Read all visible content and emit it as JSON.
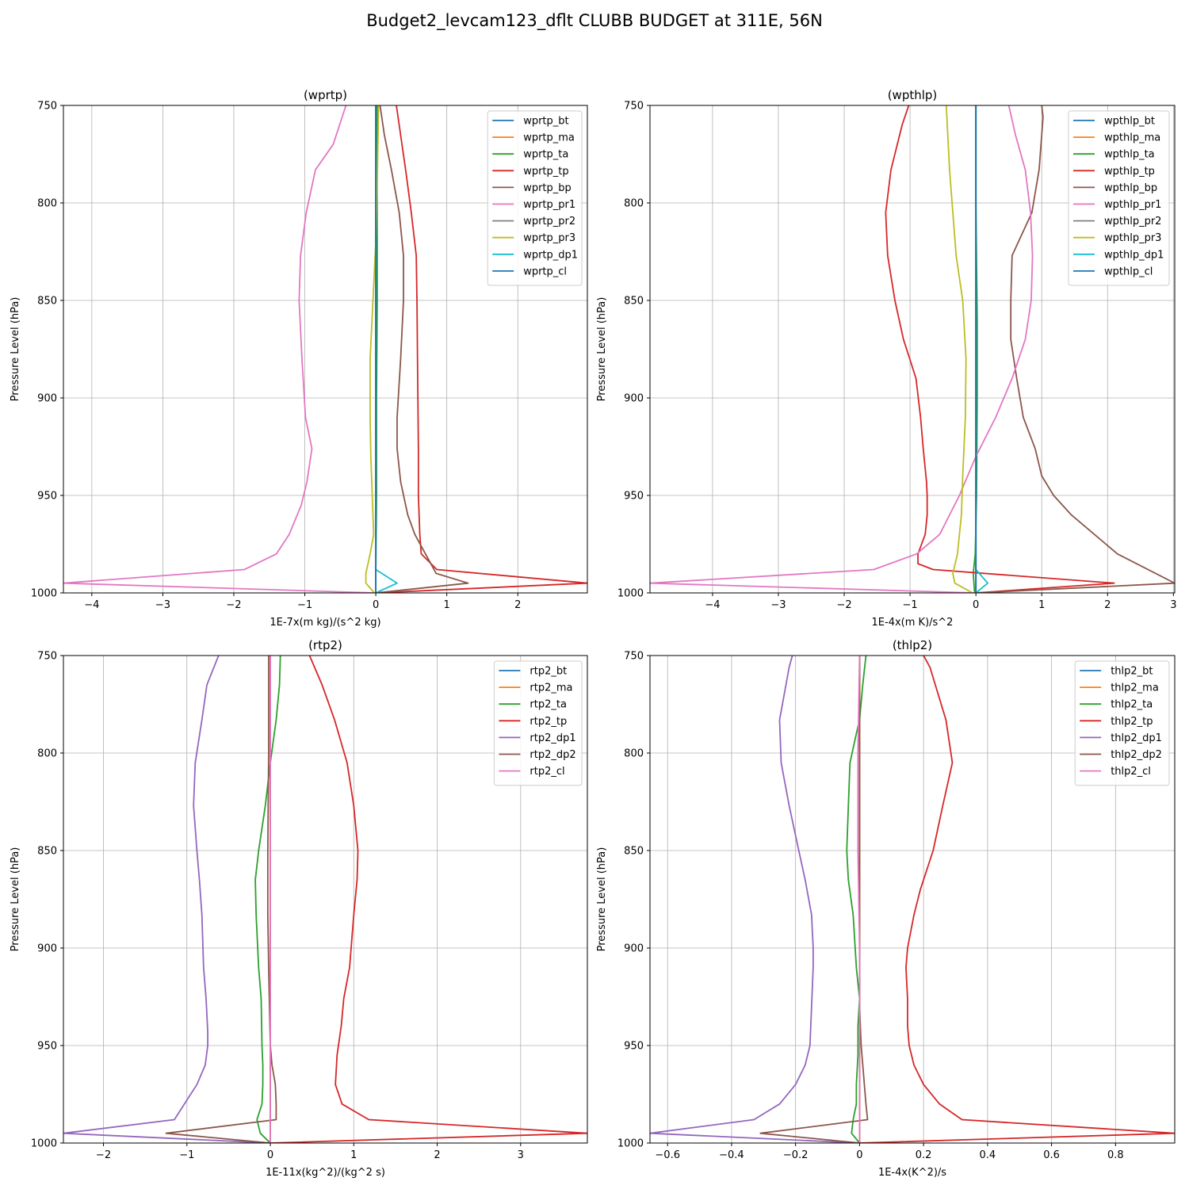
{
  "figure_title": "Budget2_levcam123_dflt CLUBB BUDGET at 311E, 56N",
  "colors": {
    "c0": "#1f77b4",
    "c1": "#ff7f0e",
    "c2": "#2ca02c",
    "c3": "#d62728",
    "c4": "#9467bd",
    "c5": "#8c564b",
    "c6": "#e377c2",
    "c7": "#7f7f7f",
    "c8": "#bcbd22",
    "c9": "#17becf"
  },
  "chart_data": [
    {
      "type": "line",
      "title": "(wprtp)",
      "xlabel": "1E-7x(m kg)/(s^2 kg)",
      "ylabel": "Pressure Level (hPa)",
      "xlim": [
        -4.4,
        2.98
      ],
      "ylim": [
        1000,
        750
      ],
      "xticks": [
        -4,
        -3,
        -2,
        -1,
        0,
        1,
        2
      ],
      "yticks": [
        750,
        800,
        850,
        900,
        950,
        1000
      ],
      "grid": true,
      "legend_position": "top-right",
      "series": [
        {
          "name": "wprtp_bt",
          "color": "c0",
          "x": [
            0,
            0
          ],
          "y": [
            750,
            1000
          ]
        },
        {
          "name": "wprtp_ma",
          "color": "c1",
          "x": [
            0,
            0
          ],
          "y": [
            750,
            1000
          ]
        },
        {
          "name": "wprtp_ta",
          "color": "c2",
          "x": [
            0.02,
            0.02,
            0.02,
            0.01,
            0.01,
            0.0,
            0.0
          ],
          "y": [
            750,
            800,
            850,
            900,
            950,
            990,
            1000
          ]
        },
        {
          "name": "wprtp_tp",
          "color": "c3",
          "x": [
            0.29,
            0.42,
            0.5,
            0.57,
            0.58,
            0.59,
            0.6,
            0.6,
            0.62,
            0.64,
            0.86,
            2.98,
            0.0
          ],
          "y": [
            750,
            783,
            805,
            827,
            850,
            890,
            926,
            950,
            970,
            980,
            988,
            995,
            1000
          ]
        },
        {
          "name": "wprtp_bp",
          "color": "c5",
          "x": [
            0.06,
            0.12,
            0.22,
            0.33,
            0.39,
            0.39,
            0.35,
            0.3,
            0.3,
            0.35,
            0.45,
            0.55,
            0.7,
            0.85,
            1.3,
            0.0
          ],
          "y": [
            750,
            765,
            783,
            805,
            827,
            850,
            880,
            910,
            926,
            943,
            960,
            970,
            980,
            990,
            995,
            1000
          ]
        },
        {
          "name": "wprtp_pr1",
          "color": "c6",
          "x": [
            -0.42,
            -0.6,
            -0.85,
            -0.98,
            -1.06,
            -1.08,
            -1.04,
            -0.99,
            -0.9,
            -0.97,
            -1.05,
            -1.22,
            -1.4,
            -1.85,
            -4.4,
            0.0
          ],
          "y": [
            750,
            770,
            783,
            805,
            827,
            850,
            880,
            910,
            926,
            943,
            955,
            970,
            980,
            988,
            995,
            1000
          ]
        },
        {
          "name": "wprtp_pr2",
          "color": "c7",
          "x": [
            0,
            0
          ],
          "y": [
            750,
            1000
          ]
        },
        {
          "name": "wprtp_pr3",
          "color": "c8",
          "x": [
            0.04,
            0.02,
            0.0,
            -0.04,
            -0.08,
            -0.08,
            -0.07,
            -0.05,
            -0.03,
            -0.08,
            -0.14,
            -0.14,
            -0.02
          ],
          "y": [
            750,
            790,
            820,
            850,
            880,
            910,
            930,
            950,
            970,
            980,
            990,
            995,
            1000
          ]
        },
        {
          "name": "wprtp_dp1",
          "color": "c9",
          "x": [
            0.0,
            0.0,
            0.0,
            0.3,
            0.0
          ],
          "y": [
            750,
            900,
            988,
            995,
            1000
          ]
        },
        {
          "name": "wprtp_cl",
          "color": "c0",
          "x": [
            0,
            0
          ],
          "y": [
            750,
            1000
          ]
        }
      ]
    },
    {
      "type": "line",
      "title": "(wpthlp)",
      "xlabel": "1E-4x(m K)/s^2",
      "ylabel": "Pressure Level (hPa)",
      "xlim": [
        -4.95,
        3.02
      ],
      "ylim": [
        1000,
        750
      ],
      "xticks": [
        -4,
        -3,
        -2,
        -1,
        0,
        1,
        2,
        3
      ],
      "yticks": [
        750,
        800,
        850,
        900,
        950,
        1000
      ],
      "grid": true,
      "legend_position": "top-right",
      "series": [
        {
          "name": "wpthlp_bt",
          "color": "c0",
          "x": [
            0,
            0
          ],
          "y": [
            750,
            1000
          ]
        },
        {
          "name": "wpthlp_ma",
          "color": "c1",
          "x": [
            0,
            0
          ],
          "y": [
            750,
            1000
          ]
        },
        {
          "name": "wpthlp_ta",
          "color": "c2",
          "x": [
            0.0,
            0.0,
            0.02,
            0.02,
            0.01,
            -0.01,
            -0.04,
            -0.02
          ],
          "y": [
            750,
            800,
            860,
            900,
            950,
            980,
            990,
            1000
          ]
        },
        {
          "name": "wpthlp_tp",
          "color": "c3",
          "x": [
            -1.02,
            -1.12,
            -1.29,
            -1.37,
            -1.34,
            -1.23,
            -1.1,
            -0.91,
            -0.84,
            -0.8,
            -0.75,
            -0.74,
            -0.74,
            -0.77,
            -0.88,
            -0.88,
            -0.65,
            2.1,
            0.0
          ],
          "y": [
            750,
            760,
            783,
            805,
            827,
            850,
            870,
            890,
            910,
            926,
            943,
            950,
            960,
            970,
            980,
            985,
            988,
            995,
            1000
          ]
        },
        {
          "name": "wpthlp_bp",
          "color": "c5",
          "x": [
            1.0,
            1.02,
            0.96,
            0.85,
            0.55,
            0.53,
            0.53,
            0.62,
            0.72,
            0.9,
            1.0,
            1.18,
            1.45,
            1.8,
            2.15,
            3.02,
            0.0
          ],
          "y": [
            750,
            756,
            783,
            805,
            827,
            850,
            870,
            890,
            910,
            926,
            940,
            950,
            960,
            970,
            980,
            995,
            1000
          ]
        },
        {
          "name": "wpthlp_pr1",
          "color": "c6",
          "x": [
            0.5,
            0.6,
            0.75,
            0.83,
            0.86,
            0.84,
            0.75,
            0.55,
            0.3,
            0.0,
            -0.25,
            -0.4,
            -0.55,
            -0.9,
            -1.55,
            -4.95,
            0.0
          ],
          "y": [
            750,
            765,
            783,
            805,
            827,
            850,
            870,
            890,
            910,
            930,
            950,
            960,
            970,
            980,
            988,
            995,
            1000
          ]
        },
        {
          "name": "wpthlp_pr2",
          "color": "c7",
          "x": [
            0,
            0
          ],
          "y": [
            750,
            1000
          ]
        },
        {
          "name": "wpthlp_pr3",
          "color": "c8",
          "x": [
            -0.45,
            -0.4,
            -0.3,
            -0.2,
            -0.15,
            -0.16,
            -0.2,
            -0.22,
            -0.28,
            -0.35,
            -0.32,
            -0.05
          ],
          "y": [
            750,
            783,
            827,
            850,
            880,
            910,
            940,
            960,
            980,
            990,
            995,
            1000
          ]
        },
        {
          "name": "wpthlp_dp1",
          "color": "c9",
          "x": [
            0.0,
            0.0,
            0.0,
            0.18,
            0.0
          ],
          "y": [
            750,
            900,
            988,
            995,
            1000
          ]
        },
        {
          "name": "wpthlp_cl",
          "color": "c0",
          "x": [
            0,
            0
          ],
          "y": [
            750,
            1000
          ]
        }
      ]
    },
    {
      "type": "line",
      "title": "(rtp2)",
      "xlabel": "1E-11x(kg^2)/(kg^2 s)",
      "ylabel": "Pressure Level (hPa)",
      "xlim": [
        -2.48,
        3.8
      ],
      "ylim": [
        1000,
        750
      ],
      "xticks": [
        -2,
        -1,
        0,
        1,
        2,
        3
      ],
      "yticks": [
        750,
        800,
        850,
        900,
        950,
        1000
      ],
      "grid": true,
      "legend_position": "top-right",
      "series": [
        {
          "name": "rtp2_bt",
          "color": "c0",
          "x": [
            0,
            0
          ],
          "y": [
            750,
            1000
          ]
        },
        {
          "name": "rtp2_ma",
          "color": "c1",
          "x": [
            0,
            0
          ],
          "y": [
            750,
            1000
          ]
        },
        {
          "name": "rtp2_ta",
          "color": "c2",
          "x": [
            0.12,
            0.11,
            0.07,
            0.0,
            -0.06,
            -0.14,
            -0.18,
            -0.17,
            -0.14,
            -0.11,
            -0.1,
            -0.09,
            -0.09,
            -0.1,
            -0.16,
            -0.12,
            0.0
          ],
          "y": [
            750,
            765,
            783,
            805,
            827,
            850,
            865,
            883,
            910,
            926,
            950,
            960,
            970,
            980,
            988,
            995,
            1000
          ]
        },
        {
          "name": "rtp2_tp",
          "color": "c3",
          "x": [
            0.47,
            0.62,
            0.77,
            0.92,
            1.0,
            1.05,
            1.04,
            1.0,
            0.95,
            0.88,
            0.85,
            0.8,
            0.78,
            0.86,
            1.18,
            3.8,
            0.0
          ],
          "y": [
            750,
            765,
            783,
            805,
            827,
            850,
            865,
            883,
            910,
            926,
            940,
            955,
            970,
            980,
            988,
            995,
            1000
          ]
        },
        {
          "name": "rtp2_dp1",
          "color": "c4",
          "x": [
            -0.62,
            -0.76,
            -0.82,
            -0.9,
            -0.92,
            -0.88,
            -0.85,
            -0.82,
            -0.8,
            -0.77,
            -0.75,
            -0.75,
            -0.78,
            -0.88,
            -1.15,
            -2.48,
            0.0
          ],
          "y": [
            750,
            765,
            783,
            805,
            827,
            850,
            865,
            883,
            910,
            926,
            943,
            950,
            960,
            970,
            988,
            995,
            1000
          ]
        },
        {
          "name": "rtp2_dp2",
          "color": "c5",
          "x": [
            -0.02,
            -0.02,
            -0.03,
            -0.03,
            -0.02,
            -0.01,
            0.0,
            0.02,
            0.06,
            0.07,
            0.07,
            -1.25,
            0.0
          ],
          "y": [
            750,
            800,
            850,
            883,
            910,
            930,
            950,
            960,
            970,
            980,
            988,
            995,
            1000
          ]
        },
        {
          "name": "rtp2_cl",
          "color": "c6",
          "x": [
            0,
            0
          ],
          "y": [
            750,
            1000
          ]
        }
      ]
    },
    {
      "type": "line",
      "title": "(thlp2)",
      "xlabel": "1E-4x(K^2)/s",
      "ylabel": "Pressure Level (hPa)",
      "xlim": [
        -0.655,
        0.985
      ],
      "ylim": [
        1000,
        750
      ],
      "xticks": [
        -0.6,
        -0.4,
        -0.2,
        0.0,
        0.2,
        0.4,
        0.6,
        0.8
      ],
      "yticks": [
        750,
        800,
        850,
        900,
        950,
        1000
      ],
      "grid": true,
      "legend_position": "top-right",
      "series": [
        {
          "name": "thlp2_bt",
          "color": "c0",
          "x": [
            0,
            0
          ],
          "y": [
            750,
            1000
          ]
        },
        {
          "name": "thlp2_ma",
          "color": "c1",
          "x": [
            0,
            0
          ],
          "y": [
            750,
            1000
          ]
        },
        {
          "name": "thlp2_ta",
          "color": "c2",
          "x": [
            0.02,
            0.01,
            0.0,
            -0.01,
            -0.03,
            -0.035,
            -0.04,
            -0.035,
            -0.02,
            -0.01,
            0.0,
            -0.005,
            -0.005,
            -0.01,
            -0.01,
            -0.02,
            -0.025,
            0.0
          ],
          "y": [
            750,
            765,
            783,
            790,
            805,
            827,
            850,
            865,
            883,
            910,
            926,
            940,
            955,
            970,
            980,
            988,
            995,
            1000
          ]
        },
        {
          "name": "thlp2_tp",
          "color": "c3",
          "x": [
            0.2,
            0.22,
            0.27,
            0.29,
            0.26,
            0.23,
            0.19,
            0.17,
            0.15,
            0.145,
            0.15,
            0.15,
            0.155,
            0.17,
            0.2,
            0.25,
            0.32,
            0.985,
            0.0
          ],
          "y": [
            750,
            756,
            783,
            805,
            827,
            850,
            870,
            883,
            900,
            910,
            926,
            940,
            950,
            960,
            970,
            980,
            988,
            995,
            1000
          ]
        },
        {
          "name": "thlp2_dp1",
          "color": "c4",
          "x": [
            -0.21,
            -0.22,
            -0.25,
            -0.245,
            -0.22,
            -0.19,
            -0.17,
            -0.15,
            -0.145,
            -0.145,
            -0.15,
            -0.155,
            -0.17,
            -0.2,
            -0.25,
            -0.33,
            -0.655,
            0.0
          ],
          "y": [
            750,
            756,
            783,
            805,
            827,
            850,
            865,
            883,
            900,
            910,
            930,
            950,
            960,
            970,
            980,
            988,
            995,
            1000
          ]
        },
        {
          "name": "thlp2_dp2",
          "color": "c5",
          "x": [
            0.0,
            0.0,
            0.0,
            0.0,
            0.005,
            0.01,
            0.015,
            0.02,
            0.025,
            -0.31,
            0.0
          ],
          "y": [
            750,
            850,
            900,
            930,
            950,
            960,
            970,
            980,
            988,
            995,
            1000
          ]
        },
        {
          "name": "thlp2_cl",
          "color": "c6",
          "x": [
            0.0,
            -0.005,
            -0.005,
            0.0,
            0.0
          ],
          "y": [
            750,
            800,
            850,
            900,
            1000
          ]
        }
      ]
    }
  ]
}
